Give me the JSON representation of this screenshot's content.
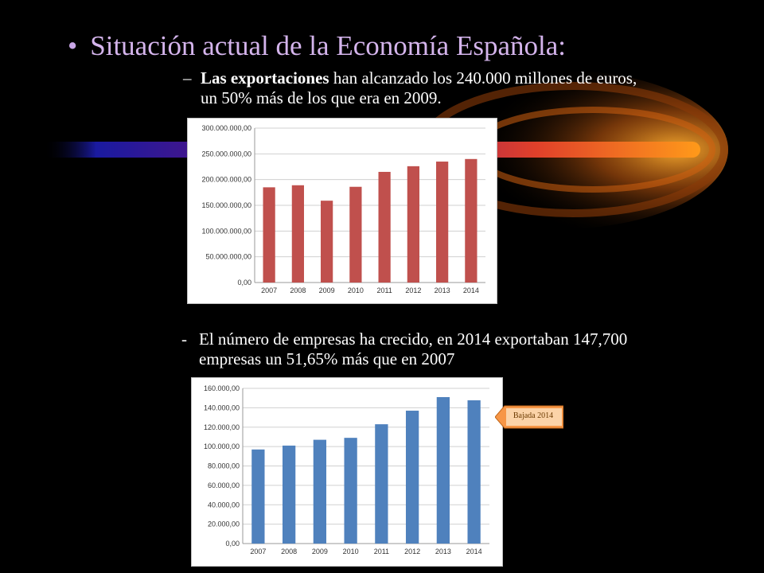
{
  "slide": {
    "bullet": "•",
    "title": "Situación actual de la Economía Española:",
    "point1": {
      "dash": "–",
      "bold": "Las exportaciones",
      "rest": " han alcanzado los 240.000 millones de euros,",
      "line2": "un 50% más de los que era en 2009."
    },
    "point2": {
      "dash": "-",
      "line1": "El número de empresas ha crecido, en 2014 exportaban 147,700",
      "line2": "empresas un 51,65% más que en 2007"
    },
    "callout": "Bajada 2014"
  },
  "colors": {
    "bar1": "#c0504d",
    "bar2": "#4f81bd",
    "title": "#d4b4ec",
    "callout": "#f79646"
  },
  "chart_data": [
    {
      "type": "bar",
      "categories": [
        "2007",
        "2008",
        "2009",
        "2010",
        "2011",
        "2012",
        "2013",
        "2014"
      ],
      "values": [
        185000000,
        189000000,
        159000000,
        186000000,
        215000000,
        226000000,
        235000000,
        240000000
      ],
      "ylim": [
        0,
        300000000
      ],
      "yticks": [
        0,
        50000000,
        100000000,
        150000000,
        200000000,
        250000000,
        300000000
      ],
      "ytick_labels": [
        "0,00",
        "50.000.000,00",
        "100.000.000,00",
        "150.000.000,00",
        "200.000.000,00",
        "250.000.000,00",
        "300.000.000,00"
      ],
      "grid": true,
      "legend": "none"
    },
    {
      "type": "bar",
      "categories": [
        "2007",
        "2008",
        "2009",
        "2010",
        "2011",
        "2012",
        "2013",
        "2014"
      ],
      "values": [
        97000,
        101000,
        107000,
        109000,
        123000,
        137000,
        151000,
        147700
      ],
      "ylim": [
        0,
        160000
      ],
      "yticks": [
        0,
        20000,
        40000,
        60000,
        80000,
        100000,
        120000,
        140000,
        160000
      ],
      "ytick_labels": [
        "0,00",
        "20.000,00",
        "40.000,00",
        "60.000,00",
        "80.000,00",
        "100.000,00",
        "120.000,00",
        "140.000,00",
        "160.000,00"
      ],
      "grid": true,
      "legend": "none",
      "annotations": [
        "Bajada 2014"
      ]
    }
  ]
}
